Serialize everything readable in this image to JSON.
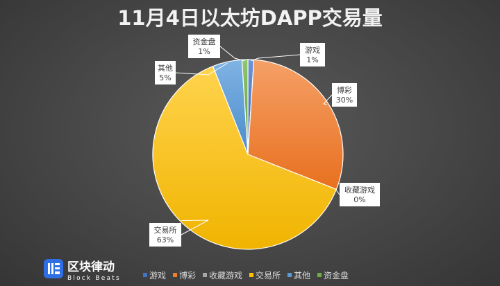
{
  "chart_data": {
    "type": "pie",
    "title": "11月4日以太坊DAPP交易量",
    "categories": [
      "游戏",
      "博彩",
      "收藏游戏",
      "交易所",
      "其他",
      "资金盘"
    ],
    "values": [
      1,
      30,
      0,
      63,
      5,
      1
    ],
    "data_labels": [
      "1%",
      "30%",
      "0%",
      "63%",
      "5%",
      "1%"
    ],
    "colors": [
      "#4472c4",
      "#ed7d31",
      "#a5a5a5",
      "#ffc000",
      "#5b9bd5",
      "#70ad47"
    ],
    "legend_position": "bottom"
  },
  "brand": {
    "name": "区块律动",
    "subtitle": "Block Beats",
    "icon": "block-beats-logo-icon"
  }
}
